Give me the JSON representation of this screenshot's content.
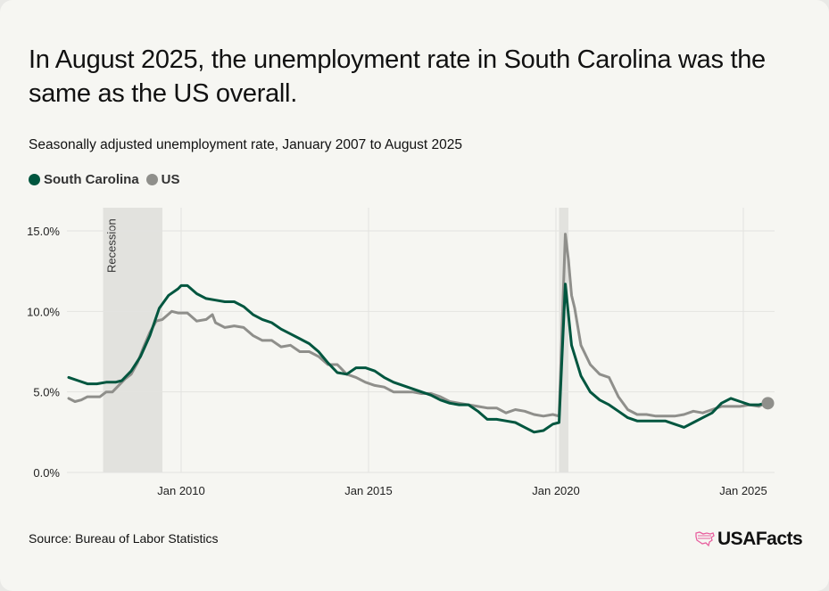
{
  "title": "In August 2025, the unemployment rate in South Carolina was the same as the US overall.",
  "subtitle": "Seasonally adjusted unemployment rate, January 2007 to August 2025",
  "legend": [
    {
      "label": "South Carolina",
      "color": "#00563f"
    },
    {
      "label": "US",
      "color": "#8f8f8b"
    }
  ],
  "source": "Source: Bureau of Labor Statistics",
  "logo_text": "USAFacts",
  "logo_color": "#e8609f",
  "chart_data": {
    "type": "line",
    "title": "In August 2025, the unemployment rate in South Carolina was the same as the US overall.",
    "xlabel": "",
    "ylabel": "",
    "x_range": [
      "2007-01",
      "2025-08"
    ],
    "ylim": [
      0,
      15
    ],
    "y_ticks": [
      0,
      5,
      10,
      15
    ],
    "y_tick_labels": [
      "0.0%",
      "5.0%",
      "10.0%",
      "15.0%"
    ],
    "x_ticks": [
      "2010-01",
      "2015-01",
      "2020-01",
      "2025-01"
    ],
    "x_tick_labels": [
      "Jan 2010",
      "Jan 2015",
      "Jan 2020",
      "Jan 2025"
    ],
    "grid": true,
    "legend_position": "top-left",
    "shaded_regions": [
      {
        "label": "Recession",
        "start": "2007-12",
        "end": "2009-06"
      },
      {
        "label": "",
        "start": "2020-02",
        "end": "2020-04"
      }
    ],
    "series": [
      {
        "name": "South Carolina",
        "points": [
          [
            "2007-01",
            5.9
          ],
          [
            "2007-04",
            5.7
          ],
          [
            "2007-07",
            5.5
          ],
          [
            "2007-10",
            5.5
          ],
          [
            "2008-01",
            5.6
          ],
          [
            "2008-04",
            5.6
          ],
          [
            "2008-06",
            5.7
          ],
          [
            "2008-09",
            6.3
          ],
          [
            "2008-12",
            7.2
          ],
          [
            "2009-03",
            8.5
          ],
          [
            "2009-06",
            10.2
          ],
          [
            "2009-09",
            11.0
          ],
          [
            "2009-12",
            11.4
          ],
          [
            "2010-01",
            11.6
          ],
          [
            "2010-03",
            11.6
          ],
          [
            "2010-06",
            11.1
          ],
          [
            "2010-09",
            10.8
          ],
          [
            "2010-12",
            10.7
          ],
          [
            "2011-03",
            10.6
          ],
          [
            "2011-06",
            10.6
          ],
          [
            "2011-09",
            10.3
          ],
          [
            "2011-12",
            9.8
          ],
          [
            "2012-03",
            9.5
          ],
          [
            "2012-06",
            9.3
          ],
          [
            "2012-09",
            8.9
          ],
          [
            "2012-12",
            8.6
          ],
          [
            "2013-03",
            8.3
          ],
          [
            "2013-06",
            8.0
          ],
          [
            "2013-09",
            7.5
          ],
          [
            "2013-12",
            6.8
          ],
          [
            "2014-03",
            6.2
          ],
          [
            "2014-06",
            6.1
          ],
          [
            "2014-09",
            6.5
          ],
          [
            "2014-12",
            6.5
          ],
          [
            "2015-03",
            6.3
          ],
          [
            "2015-06",
            5.9
          ],
          [
            "2015-09",
            5.6
          ],
          [
            "2015-12",
            5.4
          ],
          [
            "2016-03",
            5.2
          ],
          [
            "2016-06",
            5.0
          ],
          [
            "2016-09",
            4.8
          ],
          [
            "2016-12",
            4.5
          ],
          [
            "2017-03",
            4.3
          ],
          [
            "2017-06",
            4.2
          ],
          [
            "2017-09",
            4.2
          ],
          [
            "2017-12",
            3.8
          ],
          [
            "2018-03",
            3.3
          ],
          [
            "2018-06",
            3.3
          ],
          [
            "2018-09",
            3.2
          ],
          [
            "2018-12",
            3.1
          ],
          [
            "2019-03",
            2.8
          ],
          [
            "2019-06",
            2.5
          ],
          [
            "2019-09",
            2.6
          ],
          [
            "2019-12",
            3.0
          ],
          [
            "2020-02",
            3.1
          ],
          [
            "2020-04",
            11.7
          ],
          [
            "2020-06",
            7.9
          ],
          [
            "2020-09",
            6.0
          ],
          [
            "2020-12",
            5.0
          ],
          [
            "2021-03",
            4.5
          ],
          [
            "2021-06",
            4.2
          ],
          [
            "2021-09",
            3.8
          ],
          [
            "2021-12",
            3.4
          ],
          [
            "2022-03",
            3.2
          ],
          [
            "2022-06",
            3.2
          ],
          [
            "2022-09",
            3.2
          ],
          [
            "2022-12",
            3.2
          ],
          [
            "2023-03",
            3.0
          ],
          [
            "2023-06",
            2.8
          ],
          [
            "2023-09",
            3.1
          ],
          [
            "2023-12",
            3.4
          ],
          [
            "2024-03",
            3.7
          ],
          [
            "2024-06",
            4.3
          ],
          [
            "2024-09",
            4.6
          ],
          [
            "2024-12",
            4.4
          ],
          [
            "2025-03",
            4.2
          ],
          [
            "2025-06",
            4.2
          ],
          [
            "2025-08",
            4.3
          ]
        ]
      },
      {
        "name": "US",
        "points": [
          [
            "2007-01",
            4.6
          ],
          [
            "2007-03",
            4.4
          ],
          [
            "2007-05",
            4.5
          ],
          [
            "2007-07",
            4.7
          ],
          [
            "2007-09",
            4.7
          ],
          [
            "2007-11",
            4.7
          ],
          [
            "2008-01",
            5.0
          ],
          [
            "2008-03",
            5.0
          ],
          [
            "2008-05",
            5.4
          ],
          [
            "2008-07",
            5.8
          ],
          [
            "2008-09",
            6.1
          ],
          [
            "2008-11",
            6.8
          ],
          [
            "2009-01",
            7.8
          ],
          [
            "2009-03",
            8.7
          ],
          [
            "2009-05",
            9.4
          ],
          [
            "2009-07",
            9.5
          ],
          [
            "2009-10",
            10.0
          ],
          [
            "2009-12",
            9.9
          ],
          [
            "2010-03",
            9.9
          ],
          [
            "2010-06",
            9.4
          ],
          [
            "2010-09",
            9.5
          ],
          [
            "2010-11",
            9.8
          ],
          [
            "2010-12",
            9.3
          ],
          [
            "2011-03",
            9.0
          ],
          [
            "2011-06",
            9.1
          ],
          [
            "2011-09",
            9.0
          ],
          [
            "2011-12",
            8.5
          ],
          [
            "2012-03",
            8.2
          ],
          [
            "2012-06",
            8.2
          ],
          [
            "2012-09",
            7.8
          ],
          [
            "2012-12",
            7.9
          ],
          [
            "2013-03",
            7.5
          ],
          [
            "2013-06",
            7.5
          ],
          [
            "2013-09",
            7.2
          ],
          [
            "2013-12",
            6.7
          ],
          [
            "2014-03",
            6.7
          ],
          [
            "2014-06",
            6.1
          ],
          [
            "2014-09",
            5.9
          ],
          [
            "2014-12",
            5.6
          ],
          [
            "2015-03",
            5.4
          ],
          [
            "2015-06",
            5.3
          ],
          [
            "2015-09",
            5.0
          ],
          [
            "2015-12",
            5.0
          ],
          [
            "2016-03",
            5.0
          ],
          [
            "2016-06",
            4.9
          ],
          [
            "2016-09",
            4.9
          ],
          [
            "2016-12",
            4.7
          ],
          [
            "2017-03",
            4.4
          ],
          [
            "2017-06",
            4.3
          ],
          [
            "2017-09",
            4.2
          ],
          [
            "2017-12",
            4.1
          ],
          [
            "2018-03",
            4.0
          ],
          [
            "2018-06",
            4.0
          ],
          [
            "2018-09",
            3.7
          ],
          [
            "2018-12",
            3.9
          ],
          [
            "2019-03",
            3.8
          ],
          [
            "2019-06",
            3.6
          ],
          [
            "2019-09",
            3.5
          ],
          [
            "2019-12",
            3.6
          ],
          [
            "2020-02",
            3.5
          ],
          [
            "2020-04",
            14.8
          ],
          [
            "2020-05",
            13.2
          ],
          [
            "2020-06",
            11.0
          ],
          [
            "2020-07",
            10.2
          ],
          [
            "2020-09",
            7.9
          ],
          [
            "2020-12",
            6.7
          ],
          [
            "2021-03",
            6.1
          ],
          [
            "2021-06",
            5.9
          ],
          [
            "2021-09",
            4.7
          ],
          [
            "2021-12",
            3.9
          ],
          [
            "2022-03",
            3.6
          ],
          [
            "2022-06",
            3.6
          ],
          [
            "2022-09",
            3.5
          ],
          [
            "2022-12",
            3.5
          ],
          [
            "2023-03",
            3.5
          ],
          [
            "2023-06",
            3.6
          ],
          [
            "2023-09",
            3.8
          ],
          [
            "2023-12",
            3.7
          ],
          [
            "2024-03",
            3.9
          ],
          [
            "2024-06",
            4.1
          ],
          [
            "2024-09",
            4.1
          ],
          [
            "2024-12",
            4.1
          ],
          [
            "2025-03",
            4.2
          ],
          [
            "2025-06",
            4.1
          ],
          [
            "2025-08",
            4.3
          ]
        ]
      }
    ]
  }
}
